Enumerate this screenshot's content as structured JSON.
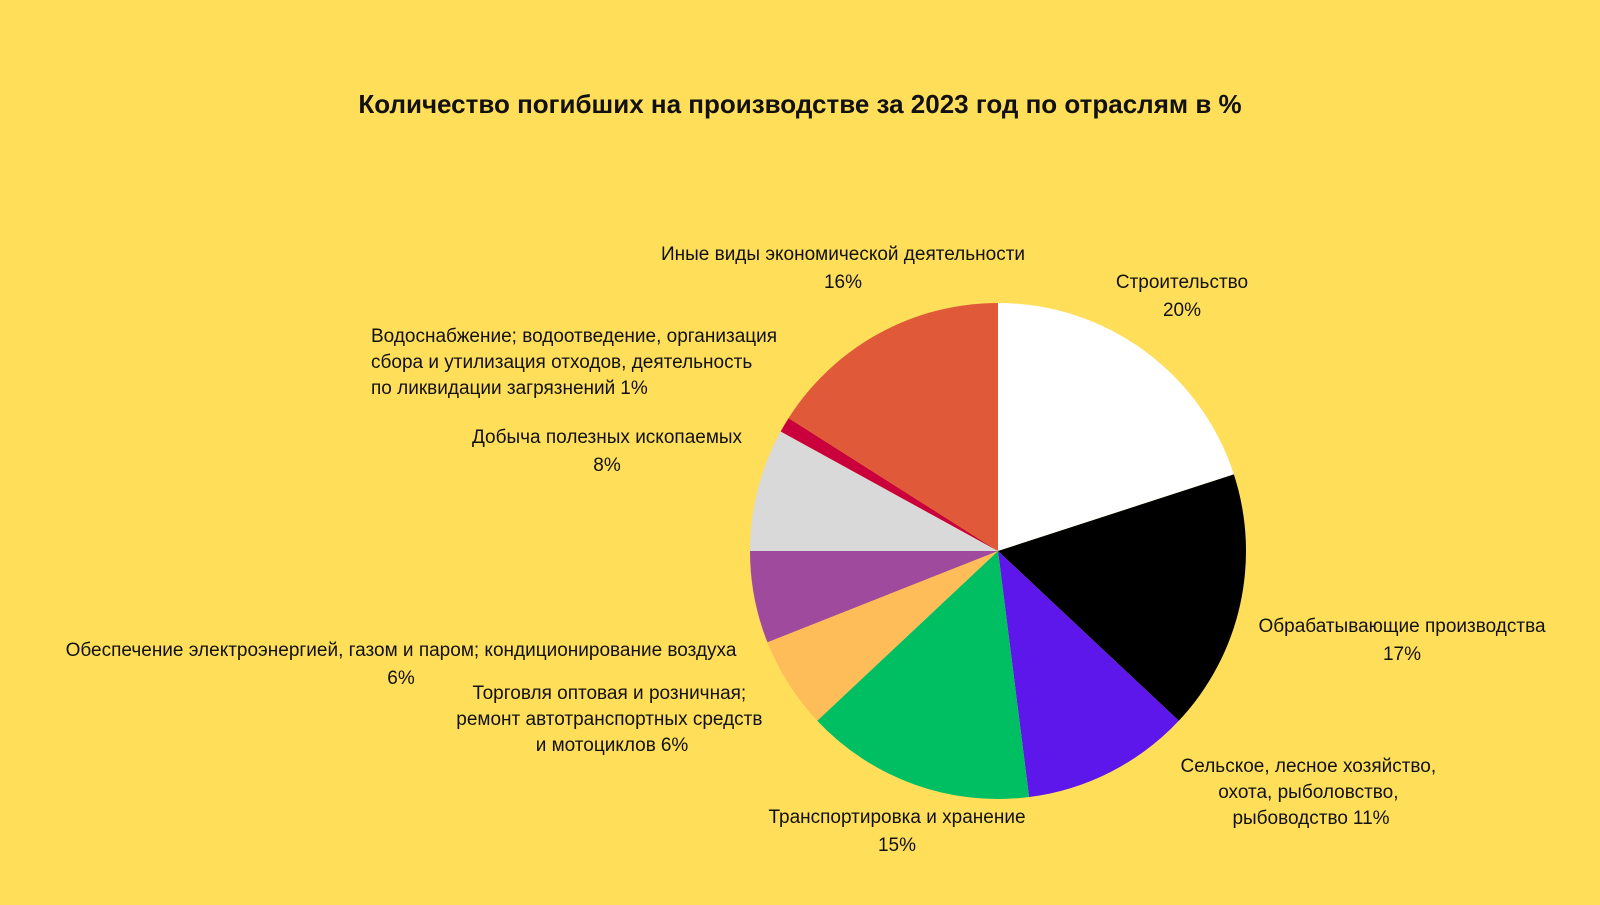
{
  "chart_data": {
    "type": "pie",
    "title": "Количество погибших на производстве за 2023 год по отраслям в %",
    "categories": [
      "Строительство",
      "Обрабатывающие производства",
      "Сельское, лесное хозяйство, охота, рыболовство, рыбоводство",
      "Транспортировка и хранение",
      "Торговля оптовая и розничная; ремонт автотранспортных средств и мотоциклов",
      "Обеспечение электроэнергией, газом и паром; кондиционирование воздуха",
      "Добыча полезных ископаемых",
      "Водоснабжение; водоотведение, организация сбора и утилизация отходов, деятельность по ликвидации загрязнений",
      "Иные виды экономической деятельности"
    ],
    "values": [
      20,
      17,
      11,
      15,
      6,
      6,
      8,
      1,
      16
    ],
    "value_labels": [
      "20%",
      "17%",
      "11%",
      "15%",
      "6%",
      "6%",
      "8%",
      "1%",
      "16%"
    ],
    "colors": [
      "#ffffff",
      "#000000",
      "#5e17eb",
      "#00bf63",
      "#ffbd59",
      "#a04a9e",
      "#d9d9d9",
      "#c9003b",
      "#e05a3a"
    ]
  }
}
